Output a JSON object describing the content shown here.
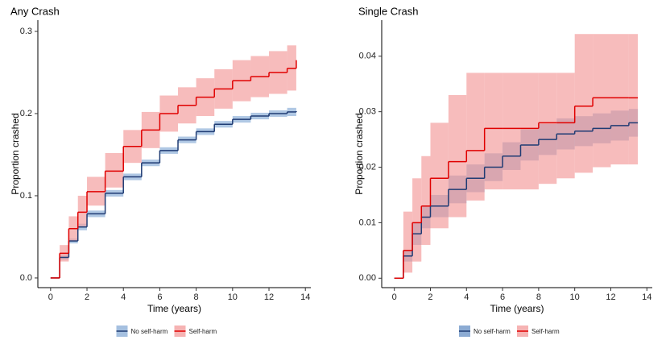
{
  "chart_data": [
    {
      "type": "line",
      "title": "Any Crash",
      "xlabel": "Time (years)",
      "ylabel": "Proportion crashed",
      "x": [
        0,
        0.5,
        1,
        1.5,
        2,
        3,
        4,
        5,
        6,
        7,
        8,
        9,
        10,
        11,
        12,
        13,
        13.5
      ],
      "xlim": [
        -0.7,
        14.3
      ],
      "ylim": [
        -0.0118,
        0.3137
      ],
      "xticks": [
        0,
        2,
        4,
        6,
        8,
        10,
        12,
        14
      ],
      "yticks": [
        {
          "value": 0,
          "label": "0.0"
        },
        0.1,
        0.2,
        0.3
      ],
      "series": [
        {
          "name": "No self-harm",
          "color": "#1f3b73",
          "fill": "#8fb0d8",
          "values": [
            0,
            0.025,
            0.045,
            0.062,
            0.078,
            0.103,
            0.123,
            0.14,
            0.155,
            0.168,
            0.178,
            0.187,
            0.193,
            0.197,
            0.2,
            0.202,
            0.203
          ],
          "lower": [
            0,
            0.022,
            0.042,
            0.058,
            0.074,
            0.099,
            0.119,
            0.136,
            0.151,
            0.164,
            0.174,
            0.183,
            0.189,
            0.193,
            0.196,
            0.197,
            0.197
          ],
          "upper": [
            0,
            0.028,
            0.048,
            0.066,
            0.082,
            0.107,
            0.127,
            0.144,
            0.159,
            0.172,
            0.182,
            0.191,
            0.197,
            0.201,
            0.204,
            0.207,
            0.208
          ]
        },
        {
          "name": "Self-harm",
          "color": "#e00000",
          "fill": "#f4a0a0",
          "values": [
            0,
            0.03,
            0.06,
            0.08,
            0.105,
            0.13,
            0.16,
            0.18,
            0.2,
            0.21,
            0.22,
            0.23,
            0.24,
            0.245,
            0.25,
            0.255,
            0.265
          ],
          "lower": [
            0,
            0.02,
            0.045,
            0.063,
            0.088,
            0.11,
            0.14,
            0.158,
            0.178,
            0.188,
            0.197,
            0.206,
            0.215,
            0.22,
            0.224,
            0.228,
            0.232
          ],
          "upper": [
            0,
            0.04,
            0.075,
            0.1,
            0.123,
            0.152,
            0.18,
            0.202,
            0.222,
            0.232,
            0.243,
            0.254,
            0.265,
            0.27,
            0.276,
            0.283,
            0.297
          ]
        }
      ]
    },
    {
      "type": "line",
      "title": "Single Crash",
      "xlabel": "Time (years)",
      "ylabel": "Proportion crashed",
      "x": [
        0,
        0.5,
        1,
        1.5,
        2,
        3,
        4,
        5,
        6,
        7,
        8,
        9,
        10,
        11,
        12,
        13,
        13.5
      ],
      "xlim": [
        -0.7,
        14.3
      ],
      "ylim": [
        -0.0017,
        0.0465
      ],
      "xticks": [
        0,
        2,
        4,
        6,
        8,
        10,
        12,
        14
      ],
      "yticks": [
        {
          "value": 0,
          "label": "0.00"
        },
        {
          "value": 0.01,
          "label": "0.01"
        },
        {
          "value": 0.02,
          "label": "0.02"
        },
        {
          "value": 0.03,
          "label": "0.03"
        },
        {
          "value": 0.04,
          "label": "0.04"
        }
      ],
      "series": [
        {
          "name": "No self-harm",
          "color": "#1f3b73",
          "fill": "#6f96c8",
          "values": [
            0,
            0.004,
            0.008,
            0.011,
            0.013,
            0.016,
            0.018,
            0.02,
            0.022,
            0.024,
            0.025,
            0.026,
            0.0265,
            0.027,
            0.0275,
            0.028,
            0.028
          ],
          "lower": [
            0,
            0.003,
            0.006,
            0.009,
            0.011,
            0.0135,
            0.0155,
            0.0175,
            0.0195,
            0.0212,
            0.0222,
            0.0232,
            0.0238,
            0.0243,
            0.0248,
            0.0255,
            0.0255
          ],
          "upper": [
            0,
            0.005,
            0.01,
            0.013,
            0.015,
            0.0185,
            0.0205,
            0.0225,
            0.0245,
            0.0268,
            0.0278,
            0.0288,
            0.0292,
            0.0297,
            0.0302,
            0.0305,
            0.0305
          ]
        },
        {
          "name": "Self-harm",
          "color": "#e00000",
          "fill": "#f4a0a0",
          "values": [
            0,
            0.005,
            0.01,
            0.013,
            0.018,
            0.021,
            0.023,
            0.027,
            0.027,
            0.027,
            0.028,
            0.028,
            0.031,
            0.0325,
            0.0325,
            0.0325,
            0.0325
          ],
          "lower": [
            0,
            0.001,
            0.003,
            0.006,
            0.009,
            0.011,
            0.014,
            0.016,
            0.016,
            0.016,
            0.017,
            0.018,
            0.019,
            0.02,
            0.0205,
            0.0205,
            0.0205
          ],
          "upper": [
            0,
            0.012,
            0.018,
            0.022,
            0.028,
            0.033,
            0.037,
            0.037,
            0.037,
            0.037,
            0.037,
            0.037,
            0.044,
            0.044,
            0.044,
            0.044,
            0.044
          ]
        }
      ]
    }
  ]
}
